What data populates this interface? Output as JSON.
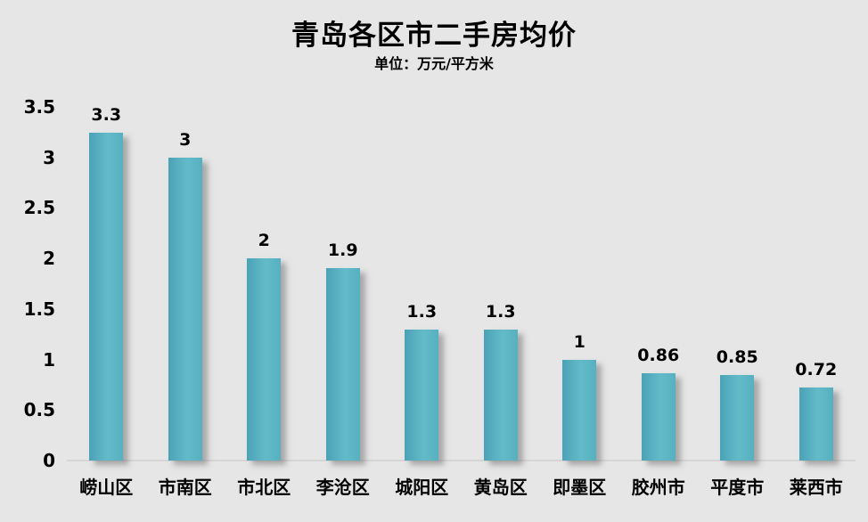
{
  "chart_data": {
    "type": "bar",
    "title": "青岛各区市二手房均价",
    "subtitle": "单位：万元/平方米",
    "categories": [
      "崂山区",
      "市南区",
      "市北区",
      "李沧区",
      "城阳区",
      "黄岛区",
      "即墨区",
      "胶州市",
      "平度市",
      "莱西市"
    ],
    "values": [
      3.3,
      3,
      2,
      1.9,
      1.3,
      1.3,
      1,
      0.86,
      0.85,
      0.72
    ],
    "value_labels": [
      "3.3",
      "3",
      "2",
      "1.9",
      "1.3",
      "1.3",
      "1",
      "0.86",
      "0.85",
      "0.72"
    ],
    "ytick_values": [
      0,
      0.5,
      1,
      1.5,
      2,
      2.5,
      3,
      3.5
    ],
    "ytick_labels": [
      "0",
      "0.5",
      "1",
      "1.5",
      "2",
      "2.5",
      "3",
      "3.5"
    ],
    "ylim": [
      0,
      3.5
    ],
    "xlabel": "",
    "ylabel": "",
    "grid": false,
    "legend": "none",
    "bar_color": "#57b1c1",
    "bar_gradient_left": "#4aa2b6",
    "bar_gradient_mid": "#63bbc9",
    "background_color": "#e6e6e6",
    "baseline_color": "#d6d6d6",
    "text_color": "#000000"
  }
}
